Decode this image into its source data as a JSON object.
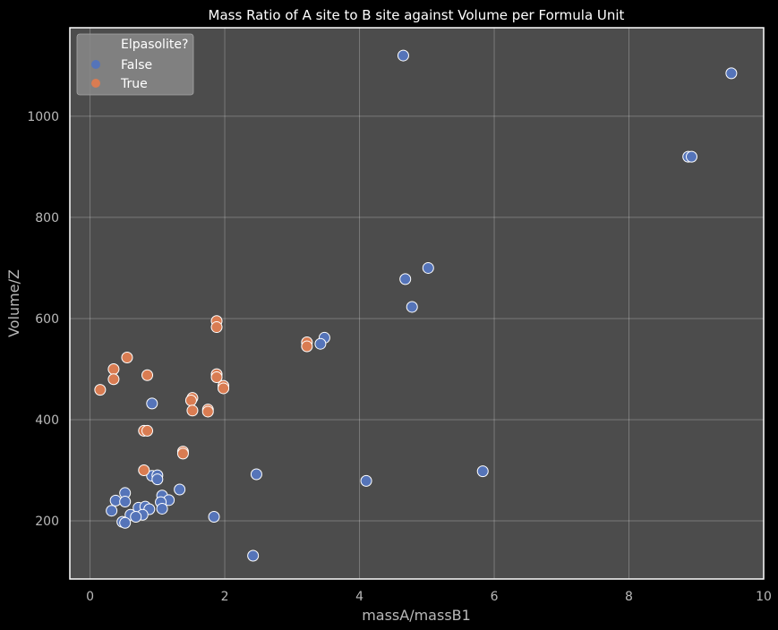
{
  "chart_data": {
    "type": "scatter",
    "title": "Mass Ratio of A site to B site against Volume per Formula Unit",
    "xlabel": "massA/massB1",
    "ylabel": "Volume/Z",
    "xlim": [
      -0.3,
      10
    ],
    "ylim": [
      85,
      1175
    ],
    "xticks": [
      0,
      2,
      4,
      6,
      8,
      10
    ],
    "yticks": [
      200,
      400,
      600,
      800,
      1000
    ],
    "grid": true,
    "legend": {
      "title": "Elpasolite?",
      "placement": "top-left",
      "entries": [
        {
          "label": "False",
          "color": "#5574b9"
        },
        {
          "label": "True",
          "color": "#d97c52"
        }
      ]
    },
    "series": [
      {
        "name": "False",
        "color": "#5574b9",
        "points": [
          [
            4.65,
            1120
          ],
          [
            9.52,
            1085
          ],
          [
            8.88,
            920
          ],
          [
            8.93,
            920
          ],
          [
            5.02,
            700
          ],
          [
            4.68,
            678
          ],
          [
            4.78,
            623
          ],
          [
            3.48,
            562
          ],
          [
            3.42,
            550
          ],
          [
            0.92,
            432
          ],
          [
            0.92,
            289
          ],
          [
            1.0,
            290
          ],
          [
            1.0,
            282
          ],
          [
            2.47,
            292
          ],
          [
            5.83,
            298
          ],
          [
            4.1,
            279
          ],
          [
            1.33,
            262
          ],
          [
            0.52,
            255
          ],
          [
            0.38,
            240
          ],
          [
            0.52,
            238
          ],
          [
            1.07,
            250
          ],
          [
            1.17,
            241
          ],
          [
            1.05,
            237
          ],
          [
            1.07,
            224
          ],
          [
            0.32,
            220
          ],
          [
            0.72,
            226
          ],
          [
            0.82,
            228
          ],
          [
            0.88,
            223
          ],
          [
            0.6,
            212
          ],
          [
            0.78,
            212
          ],
          [
            0.68,
            208
          ],
          [
            0.48,
            198
          ],
          [
            0.52,
            196
          ],
          [
            1.84,
            208
          ],
          [
            2.42,
            131
          ]
        ]
      },
      {
        "name": "True",
        "color": "#d97c52",
        "points": [
          [
            0.15,
            459
          ],
          [
            0.35,
            500
          ],
          [
            0.35,
            480
          ],
          [
            0.55,
            523
          ],
          [
            0.85,
            488
          ],
          [
            0.8,
            378
          ],
          [
            0.85,
            378
          ],
          [
            0.8,
            300
          ],
          [
            1.38,
            337
          ],
          [
            1.38,
            333
          ],
          [
            1.52,
            443
          ],
          [
            1.5,
            438
          ],
          [
            1.52,
            418
          ],
          [
            1.75,
            420
          ],
          [
            1.75,
            416
          ],
          [
            1.88,
            595
          ],
          [
            1.88,
            583
          ],
          [
            1.88,
            490
          ],
          [
            1.88,
            484
          ],
          [
            1.98,
            467
          ],
          [
            1.98,
            462
          ],
          [
            3.22,
            553
          ],
          [
            3.22,
            545
          ]
        ]
      }
    ]
  }
}
